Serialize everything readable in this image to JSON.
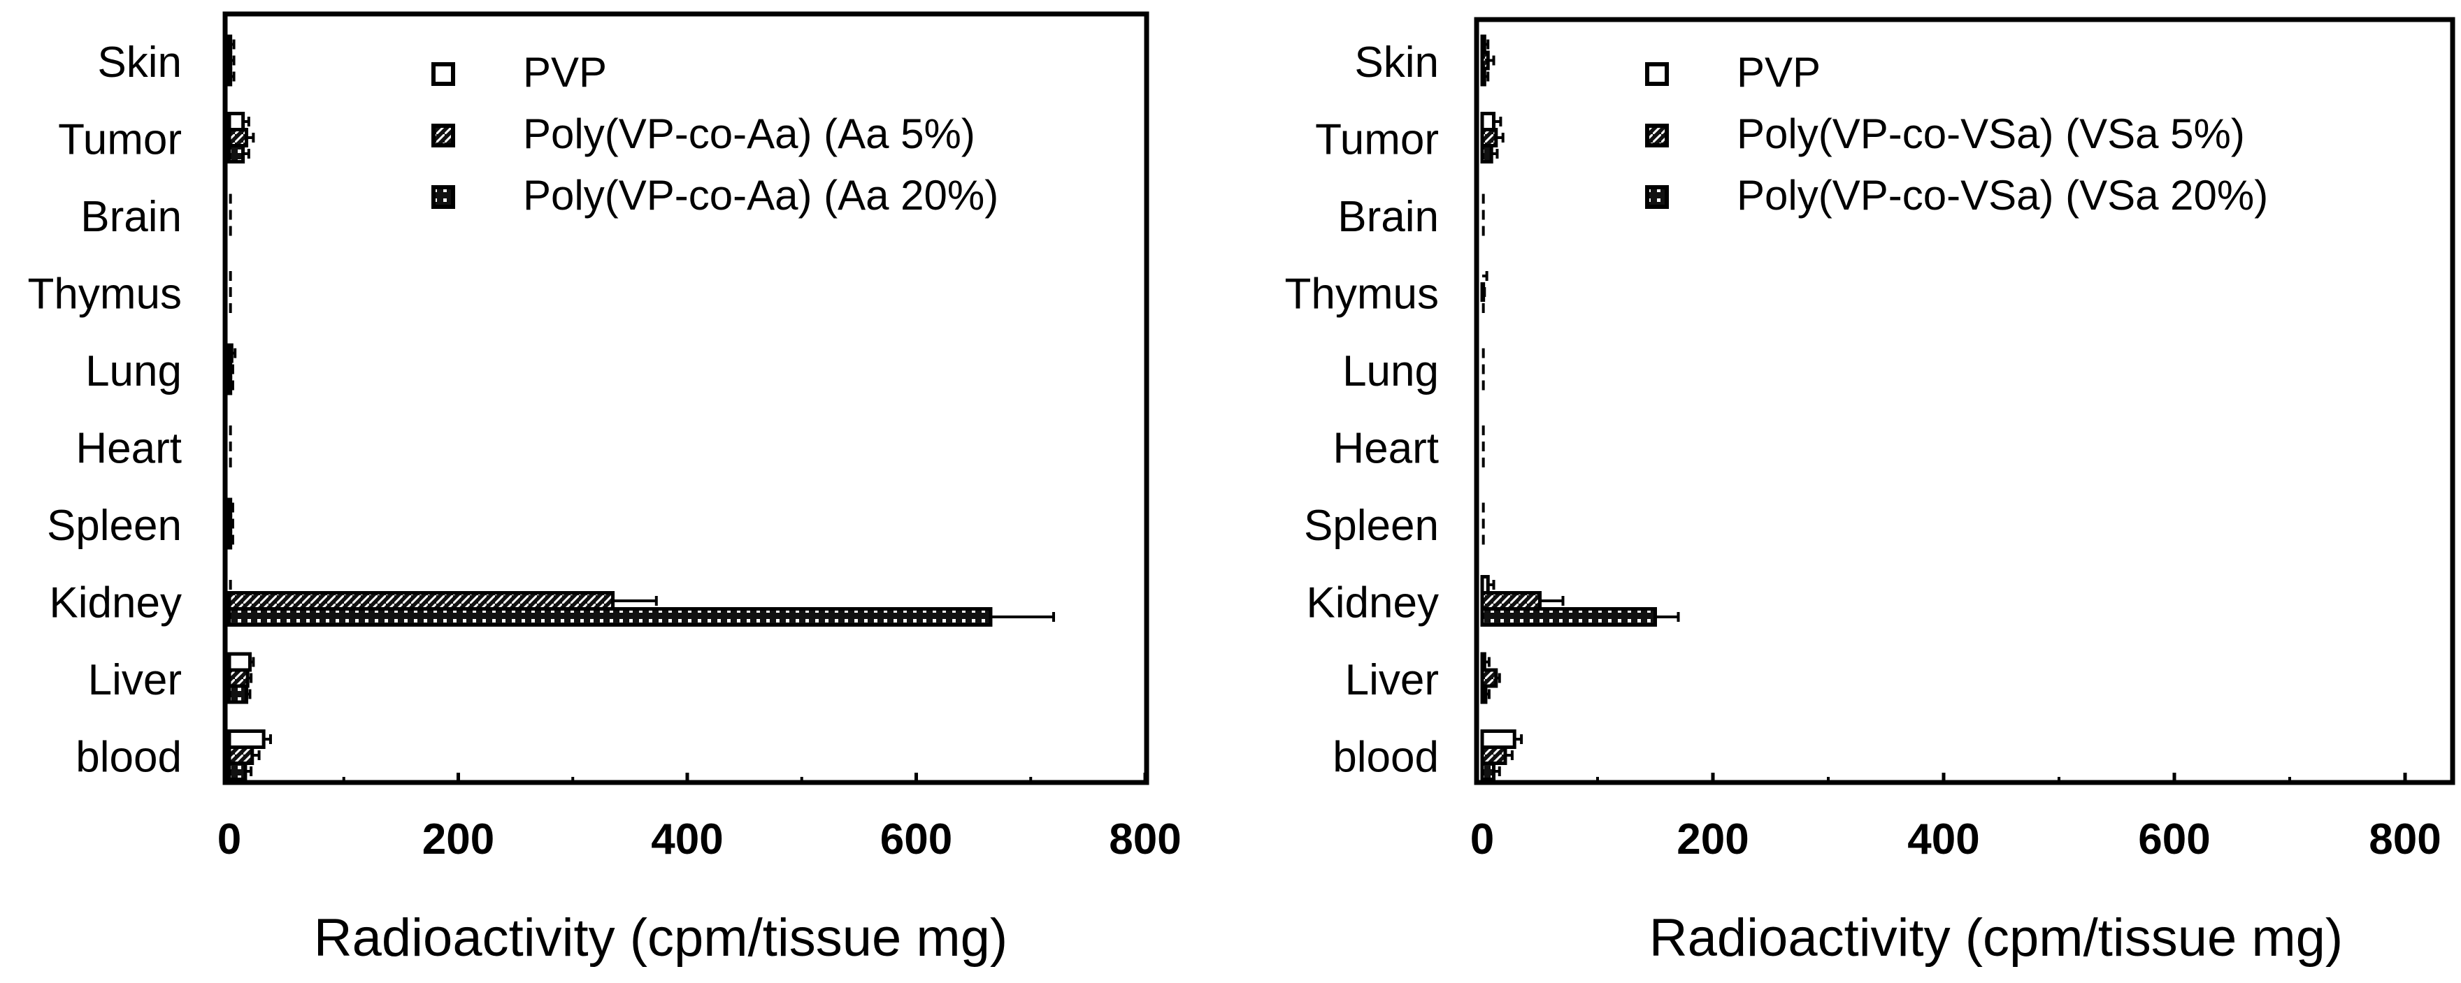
{
  "chart_data": [
    {
      "type": "bar",
      "orientation": "horizontal",
      "title": "",
      "xlabel": "Radioactivity (cpm/tissue mg)",
      "ylabel": "",
      "xlim": [
        0,
        800
      ],
      "xticks": [
        "0",
        "200",
        "400",
        "600",
        "800"
      ],
      "categories": [
        "Skin",
        "Tumor",
        "Brain",
        "Thymus",
        "Lung",
        "Heart",
        "Spleen",
        "Kidney",
        "Liver",
        "blood"
      ],
      "legend_position": "top-right",
      "series": [
        {
          "name": "PVP",
          "pattern": "open",
          "values": [
            1,
            12,
            0,
            0,
            2,
            0,
            1,
            0,
            18,
            30
          ],
          "errors": [
            3,
            5,
            1,
            1,
            3,
            1,
            2,
            1,
            3,
            6
          ]
        },
        {
          "name": "Poly(VP-co-Aa) (Aa  5%)",
          "pattern": "hatched",
          "values": [
            1,
            15,
            0,
            0,
            1,
            0,
            1,
            335,
            16,
            20
          ],
          "errors": [
            3,
            6,
            1,
            1,
            2,
            1,
            2,
            38,
            3,
            6
          ]
        },
        {
          "name": "Poly(VP-co-Aa) (Aa 20%)",
          "pattern": "dotted",
          "values": [
            1,
            12,
            0,
            0,
            1,
            0,
            1,
            665,
            15,
            14
          ],
          "errors": [
            3,
            5,
            1,
            1,
            2,
            1,
            2,
            55,
            3,
            5
          ]
        }
      ]
    },
    {
      "type": "bar",
      "orientation": "horizontal",
      "title": "",
      "xlabel": "Radioactivity (cpm/tissue mg)",
      "ylabel": "",
      "xlim": [
        0,
        800
      ],
      "xticks": [
        "0",
        "200",
        "400",
        "600",
        "800"
      ],
      "categories": [
        "Skin",
        "Tumor",
        "Brain",
        "Thymus",
        "Lung",
        "Heart",
        "Spleen",
        "Kidney",
        "Liver",
        "blood"
      ],
      "legend_position": "top-right",
      "series": [
        {
          "name": "PVP",
          "pattern": "open",
          "values": [
            2,
            10,
            0,
            0,
            0,
            0,
            0,
            5,
            2,
            28
          ],
          "errors": [
            3,
            6,
            1,
            4,
            1,
            1,
            1,
            5,
            4,
            6
          ]
        },
        {
          "name": "Poly(VP-co-VSa) (VSa  5%)",
          "pattern": "hatched",
          "values": [
            5,
            12,
            0,
            1,
            0,
            0,
            0,
            50,
            12,
            20
          ],
          "errors": [
            5,
            6,
            1,
            1,
            1,
            1,
            1,
            20,
            3,
            6
          ]
        },
        {
          "name": "Poly(VP-co-VSa) (VSa 20%)",
          "pattern": "dotted",
          "values": [
            2,
            8,
            0,
            0,
            0,
            0,
            0,
            150,
            3,
            10
          ],
          "errors": [
            3,
            5,
            1,
            1,
            1,
            1,
            1,
            20,
            3,
            5
          ]
        }
      ]
    }
  ]
}
